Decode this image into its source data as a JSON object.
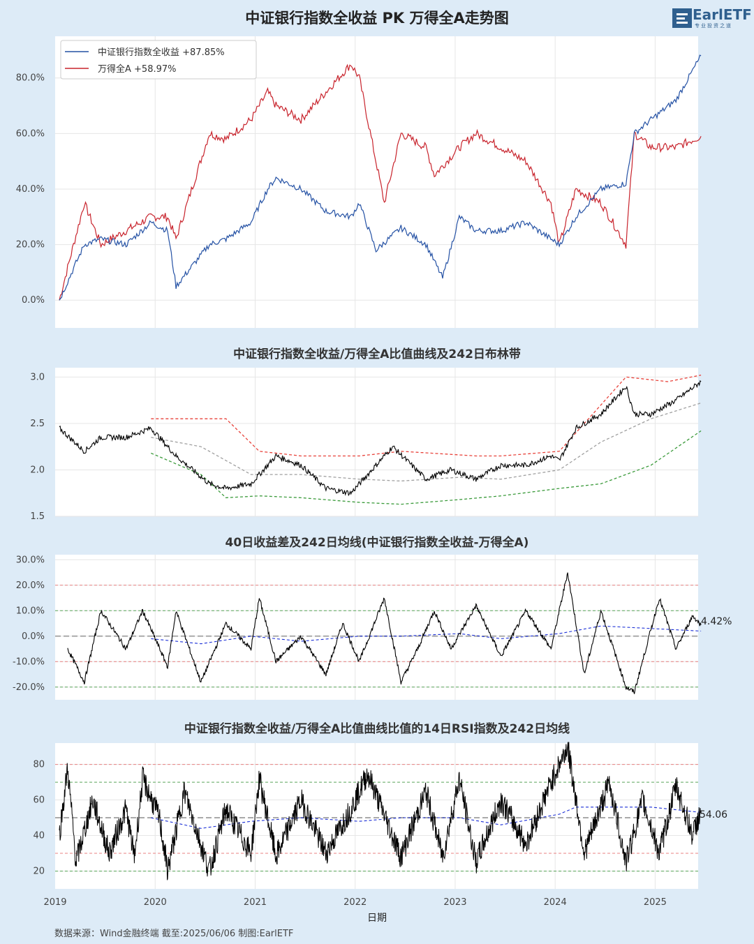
{
  "title": "中证银行指数全收益 PK 万得全A走势图",
  "logo": {
    "text": "EarlETF",
    "sub": "专业投资之道"
  },
  "colors": {
    "bank": "#2451a4",
    "wind": "#c8232c",
    "ratio": "#000000",
    "upper": "#e8423a",
    "lower": "#3a9a3a",
    "mid": "#a0a0a0",
    "ma": "#1a2ed6",
    "background": "#ddebf7",
    "panel": "#ffffff"
  },
  "panel1": {
    "legend": [
      {
        "label": "中证银行指数全收益",
        "value": "+87.85%"
      },
      {
        "label": "万得全A",
        "value": "+58.97%"
      }
    ],
    "yticks": [
      "0.0%",
      "20.0%",
      "40.0%",
      "60.0%",
      "80.0%"
    ]
  },
  "panel2": {
    "title": "中证银行指数全收益/万得全A比值曲线及242日布林带",
    "yticks": [
      "1.5",
      "2.0",
      "2.5",
      "3.0"
    ]
  },
  "panel3": {
    "title": "40日收益差及242日均线(中证银行指数全收益-万得全A)",
    "yticks": [
      "-20.0%",
      "-10.0%",
      "0.0%",
      "10.0%",
      "20.0%",
      "30.0%"
    ],
    "last_value": "4.42%"
  },
  "panel4": {
    "title": "中证银行指数全收益/万得全A比值曲线比值的14日RSI指数及242日均线",
    "yticks": [
      "20",
      "40",
      "60",
      "80"
    ],
    "last_value": "54.06"
  },
  "x_axis": {
    "label": "日期",
    "ticks": [
      "2019",
      "2020",
      "2021",
      "2022",
      "2023",
      "2024",
      "2025"
    ]
  },
  "footer": "数据来源：Wind金融终端 截至:2025/06/06 制图:EarlETF",
  "chart_data": [
    {
      "type": "line",
      "title": "中证银行指数全收益 PK 万得全A走势图",
      "x_range": [
        "2019-01-02",
        "2025-06-06"
      ],
      "ylim": [
        -10,
        95
      ],
      "series": [
        {
          "name": "中证银行指数全收益",
          "points": [
            [
              "2019-01",
              0
            ],
            [
              "2019-04",
              20
            ],
            [
              "2019-06",
              22
            ],
            [
              "2019-09",
              20
            ],
            [
              "2019-12",
              28
            ],
            [
              "2020-02",
              25
            ],
            [
              "2020-03",
              5
            ],
            [
              "2020-07",
              20
            ],
            [
              "2020-09",
              22
            ],
            [
              "2020-12",
              28
            ],
            [
              "2021-02",
              40
            ],
            [
              "2021-03",
              44
            ],
            [
              "2021-06",
              40
            ],
            [
              "2021-09",
              32
            ],
            [
              "2021-12",
              30
            ],
            [
              "2022-01",
              35
            ],
            [
              "2022-03",
              18
            ],
            [
              "2022-06",
              26
            ],
            [
              "2022-09",
              20
            ],
            [
              "2022-11",
              8
            ],
            [
              "2023-01",
              30
            ],
            [
              "2023-03",
              25
            ],
            [
              "2023-06",
              25
            ],
            [
              "2023-09",
              28
            ],
            [
              "2023-12",
              22
            ],
            [
              "2024-01",
              20
            ],
            [
              "2024-03",
              30
            ],
            [
              "2024-06",
              40
            ],
            [
              "2024-09",
              42
            ],
            [
              "2024-10",
              60
            ],
            [
              "2024-12",
              65
            ],
            [
              "2025-03",
              72
            ],
            [
              "2025-06",
              88
            ]
          ]
        },
        {
          "name": "万得全A",
          "points": [
            [
              "2019-01",
              0
            ],
            [
              "2019-04",
              35
            ],
            [
              "2019-06",
              20
            ],
            [
              "2019-09",
              25
            ],
            [
              "2019-12",
              30
            ],
            [
              "2020-02",
              30
            ],
            [
              "2020-03",
              22
            ],
            [
              "2020-07",
              60
            ],
            [
              "2020-09",
              58
            ],
            [
              "2020-12",
              65
            ],
            [
              "2021-02",
              75
            ],
            [
              "2021-03",
              70
            ],
            [
              "2021-06",
              65
            ],
            [
              "2021-09",
              75
            ],
            [
              "2021-12",
              85
            ],
            [
              "2022-01",
              80
            ],
            [
              "2022-03",
              50
            ],
            [
              "2022-04",
              35
            ],
            [
              "2022-06",
              60
            ],
            [
              "2022-09",
              55
            ],
            [
              "2022-10",
              45
            ],
            [
              "2023-01",
              55
            ],
            [
              "2023-03",
              60
            ],
            [
              "2023-06",
              55
            ],
            [
              "2023-09",
              50
            ],
            [
              "2023-12",
              35
            ],
            [
              "2024-01",
              20
            ],
            [
              "2024-03",
              40
            ],
            [
              "2024-06",
              35
            ],
            [
              "2024-09",
              20
            ],
            [
              "2024-10",
              60
            ],
            [
              "2024-12",
              55
            ],
            [
              "2025-03",
              55
            ],
            [
              "2025-06",
              59
            ]
          ]
        }
      ]
    },
    {
      "type": "line",
      "title": "中证银行指数全收益/万得全A比值曲线及242日布林带",
      "ylim": [
        1.5,
        3.1
      ],
      "series": [
        {
          "name": "比值",
          "points": [
            [
              "2019-01",
              2.45
            ],
            [
              "2019-04",
              2.2
            ],
            [
              "2019-06",
              2.35
            ],
            [
              "2019-09",
              2.35
            ],
            [
              "2019-12",
              2.45
            ],
            [
              "2020-03",
              2.15
            ],
            [
              "2020-07",
              1.85
            ],
            [
              "2020-09",
              1.8
            ],
            [
              "2020-12",
              1.85
            ],
            [
              "2021-03",
              2.15
            ],
            [
              "2021-06",
              2.05
            ],
            [
              "2021-09",
              1.8
            ],
            [
              "2021-12",
              1.75
            ],
            [
              "2022-03",
              2.05
            ],
            [
              "2022-05",
              2.25
            ],
            [
              "2022-09",
              1.9
            ],
            [
              "2022-12",
              2.0
            ],
            [
              "2023-03",
              1.9
            ],
            [
              "2023-06",
              2.05
            ],
            [
              "2023-09",
              2.05
            ],
            [
              "2023-12",
              2.15
            ],
            [
              "2024-01",
              2.1
            ],
            [
              "2024-03",
              2.45
            ],
            [
              "2024-06",
              2.6
            ],
            [
              "2024-09",
              2.9
            ],
            [
              "2024-10",
              2.6
            ],
            [
              "2024-12",
              2.6
            ],
            [
              "2025-03",
              2.75
            ],
            [
              "2025-06",
              2.95
            ]
          ]
        },
        {
          "name": "上轨",
          "points": [
            [
              "2019-12",
              2.55
            ],
            [
              "2020-06",
              2.55
            ],
            [
              "2020-09",
              2.55
            ],
            [
              "2021-01",
              2.2
            ],
            [
              "2021-06",
              2.15
            ],
            [
              "2022-01",
              2.15
            ],
            [
              "2022-06",
              2.2
            ],
            [
              "2023-03",
              2.15
            ],
            [
              "2023-06",
              2.15
            ],
            [
              "2024-01",
              2.2
            ],
            [
              "2024-06",
              2.7
            ],
            [
              "2024-09",
              3.0
            ],
            [
              "2025-02",
              2.95
            ],
            [
              "2025-06",
              3.02
            ]
          ]
        },
        {
          "name": "中轨",
          "points": [
            [
              "2019-12",
              2.35
            ],
            [
              "2020-06",
              2.25
            ],
            [
              "2020-12",
              1.95
            ],
            [
              "2021-06",
              1.95
            ],
            [
              "2022-01",
              1.9
            ],
            [
              "2022-06",
              1.88
            ],
            [
              "2023-01",
              1.92
            ],
            [
              "2023-06",
              1.9
            ],
            [
              "2024-01",
              2.0
            ],
            [
              "2024-06",
              2.3
            ],
            [
              "2024-12",
              2.55
            ],
            [
              "2025-06",
              2.72
            ]
          ]
        },
        {
          "name": "下轨",
          "points": [
            [
              "2019-12",
              2.18
            ],
            [
              "2020-06",
              1.95
            ],
            [
              "2020-09",
              1.7
            ],
            [
              "2021-01",
              1.72
            ],
            [
              "2021-06",
              1.7
            ],
            [
              "2022-01",
              1.65
            ],
            [
              "2022-06",
              1.63
            ],
            [
              "2023-01",
              1.68
            ],
            [
              "2023-06",
              1.72
            ],
            [
              "2024-01",
              1.8
            ],
            [
              "2024-06",
              1.85
            ],
            [
              "2024-12",
              2.05
            ],
            [
              "2025-06",
              2.42
            ]
          ]
        }
      ]
    },
    {
      "type": "line",
      "title": "40日收益差及242日均线(中证银行指数全收益-万得全A)",
      "ylim": [
        -25,
        32
      ],
      "series": [
        {
          "name": "40日收益差",
          "points": [
            [
              "2019-02",
              -5
            ],
            [
              "2019-04",
              -18
            ],
            [
              "2019-06",
              10
            ],
            [
              "2019-09",
              -5
            ],
            [
              "2019-11",
              10
            ],
            [
              "2020-02",
              -12
            ],
            [
              "2020-03",
              10
            ],
            [
              "2020-06",
              -18
            ],
            [
              "2020-09",
              5
            ],
            [
              "2020-12",
              -5
            ],
            [
              "2021-01",
              15
            ],
            [
              "2021-03",
              -10
            ],
            [
              "2021-06",
              0
            ],
            [
              "2021-09",
              -15
            ],
            [
              "2021-11",
              5
            ],
            [
              "2022-01",
              -10
            ],
            [
              "2022-04",
              15
            ],
            [
              "2022-06",
              -18
            ],
            [
              "2022-08",
              -5
            ],
            [
              "2022-10",
              10
            ],
            [
              "2022-12",
              -5
            ],
            [
              "2023-03",
              12
            ],
            [
              "2023-06",
              -8
            ],
            [
              "2023-09",
              10
            ],
            [
              "2023-12",
              -5
            ],
            [
              "2024-02",
              25
            ],
            [
              "2024-04",
              -15
            ],
            [
              "2024-06",
              10
            ],
            [
              "2024-09",
              -20
            ],
            [
              "2024-10",
              -22
            ],
            [
              "2025-01",
              15
            ],
            [
              "2025-03",
              -5
            ],
            [
              "2025-05",
              8
            ],
            [
              "2025-06",
              4.42
            ]
          ]
        },
        {
          "name": "242日均线",
          "points": [
            [
              "2019-12",
              -1
            ],
            [
              "2020-06",
              -3
            ],
            [
              "2020-12",
              0
            ],
            [
              "2021-06",
              -2
            ],
            [
              "2022-01",
              0
            ],
            [
              "2022-06",
              0
            ],
            [
              "2023-01",
              1
            ],
            [
              "2023-06",
              -1
            ],
            [
              "2024-01",
              1
            ],
            [
              "2024-06",
              4
            ],
            [
              "2024-12",
              3
            ],
            [
              "2025-06",
              2
            ]
          ]
        }
      ],
      "reference_lines": [
        -20,
        -10,
        0,
        10,
        20
      ]
    },
    {
      "type": "line",
      "title": "中证银行指数全收益/万得全A比值曲线比值的14日RSI指数及242日均线",
      "ylim": [
        10,
        92
      ],
      "series": [
        {
          "name": "RSI14",
          "points": [
            [
              "2019-01",
              40
            ],
            [
              "2019-02",
              78
            ],
            [
              "2019-03",
              25
            ],
            [
              "2019-05",
              60
            ],
            [
              "2019-07",
              30
            ],
            [
              "2019-09",
              55
            ],
            [
              "2019-10",
              28
            ],
            [
              "2019-11",
              72
            ],
            [
              "2020-01",
              50
            ],
            [
              "2020-02",
              20
            ],
            [
              "2020-04",
              65
            ],
            [
              "2020-07",
              20
            ],
            [
              "2020-09",
              55
            ],
            [
              "2020-12",
              30
            ],
            [
              "2021-01",
              72
            ],
            [
              "2021-03",
              28
            ],
            [
              "2021-06",
              60
            ],
            [
              "2021-09",
              30
            ],
            [
              "2021-12",
              55
            ],
            [
              "2022-02",
              75
            ],
            [
              "2022-06",
              28
            ],
            [
              "2022-09",
              65
            ],
            [
              "2022-11",
              28
            ],
            [
              "2023-01",
              72
            ],
            [
              "2023-03",
              25
            ],
            [
              "2023-06",
              60
            ],
            [
              "2023-09",
              35
            ],
            [
              "2023-12",
              70
            ],
            [
              "2024-02",
              90
            ],
            [
              "2024-04",
              30
            ],
            [
              "2024-07",
              70
            ],
            [
              "2024-09",
              25
            ],
            [
              "2024-11",
              60
            ],
            [
              "2025-01",
              30
            ],
            [
              "2025-03",
              68
            ],
            [
              "2025-05",
              40
            ],
            [
              "2025-06",
              54.06
            ]
          ]
        },
        {
          "name": "242日均线",
          "points": [
            [
              "2019-12",
              50
            ],
            [
              "2020-06",
              44
            ],
            [
              "2020-12",
              48
            ],
            [
              "2021-06",
              50
            ],
            [
              "2022-01",
              48
            ],
            [
              "2022-06",
              50
            ],
            [
              "2023-01",
              50
            ],
            [
              "2023-06",
              46
            ],
            [
              "2024-01",
              52
            ],
            [
              "2024-03",
              56
            ],
            [
              "2024-12",
              56
            ],
            [
              "2025-06",
              53
            ]
          ]
        }
      ],
      "reference_lines": [
        20,
        30,
        50,
        70,
        80
      ]
    }
  ]
}
